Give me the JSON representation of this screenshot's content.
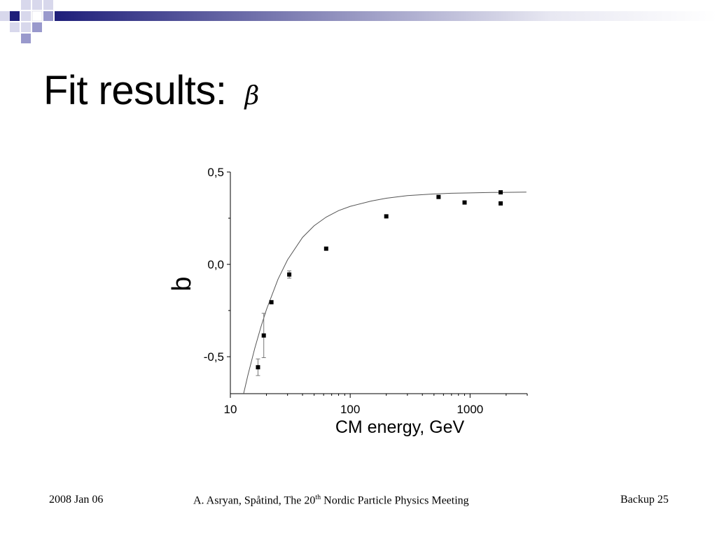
{
  "slide": {
    "title": "Fit results:",
    "title_symbol": "β"
  },
  "footer": {
    "date": "2008 Jan 06",
    "credit_before": "A. Asryan, Spåtind, The 20",
    "credit_sup": "th",
    "credit_after": " Nordic Particle Physics Meeting",
    "page": "Backup 25"
  },
  "colors": {
    "accent_dark": "#1f1f7a",
    "accent_light": "#9999cc",
    "marker": "#000000",
    "fit_curve": "#555555",
    "error_bar": "#777777"
  },
  "chart_data": {
    "type": "scatter",
    "xlabel": "CM energy, GeV",
    "ylabel": "b",
    "x_scale": "log",
    "xlim": [
      10,
      3000
    ],
    "ylim": [
      -0.7,
      0.5
    ],
    "x_ticks": [
      10,
      100,
      1000
    ],
    "x_tick_labels": [
      "10",
      "100",
      "1000"
    ],
    "y_ticks": [
      -0.5,
      0.0,
      0.5
    ],
    "y_tick_labels": [
      "-0,5",
      "0,0",
      "0,5"
    ],
    "grid": false,
    "series": [
      {
        "points": [
          {
            "x": 17,
            "y": -0.557,
            "err": 0.045
          },
          {
            "x": 19,
            "y": -0.385,
            "err": 0.12
          },
          {
            "x": 22,
            "y": -0.205
          },
          {
            "x": 31,
            "y": -0.055,
            "err": 0.02
          },
          {
            "x": 63,
            "y": 0.085
          },
          {
            "x": 200,
            "y": 0.26
          },
          {
            "x": 546,
            "y": 0.365
          },
          {
            "x": 900,
            "y": 0.335
          },
          {
            "x": 1800,
            "y": 0.39
          },
          {
            "x": 1800,
            "y": 0.33
          }
        ]
      }
    ],
    "fit_curve": {
      "x": [
        12.9,
        14,
        16,
        18,
        20,
        25,
        30,
        40,
        50,
        63,
        80,
        100,
        150,
        200,
        300,
        500,
        700,
        1000,
        1500,
        2000,
        2950
      ],
      "y": [
        -0.7,
        -0.601,
        -0.454,
        -0.338,
        -0.245,
        -0.08,
        0.025,
        0.146,
        0.209,
        0.256,
        0.291,
        0.314,
        0.343,
        0.358,
        0.372,
        0.381,
        0.385,
        0.387,
        0.389,
        0.39,
        0.391
      ]
    }
  }
}
